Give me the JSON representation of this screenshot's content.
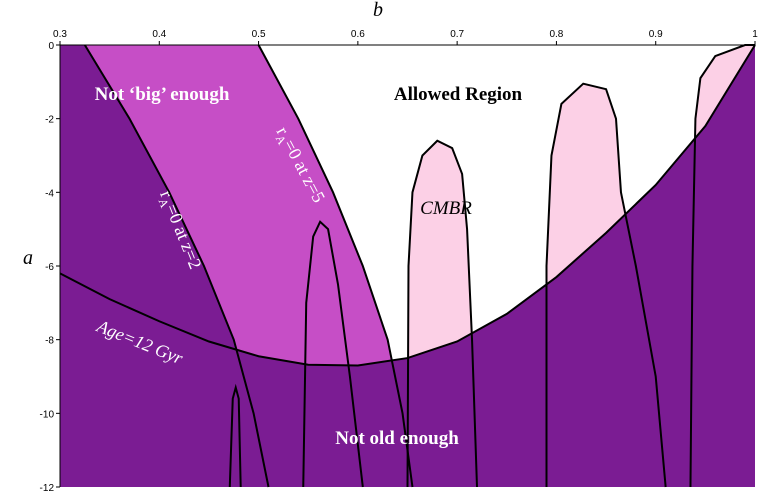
{
  "chart_data": {
    "type": "region",
    "x_label": "b",
    "y_label": "a",
    "xlim": [
      0.3,
      1.0
    ],
    "ylim": [
      -12,
      0
    ],
    "xticks": [
      0.3,
      0.4,
      0.5,
      0.6,
      0.7,
      0.8,
      0.9,
      1
    ],
    "yticks": [
      0,
      -2,
      -4,
      -6,
      -8,
      -10,
      -12
    ],
    "curves": [
      {
        "fill": "#c64ec6",
        "close": "left",
        "x": [
          0.5,
          0.54,
          0.575,
          0.605,
          0.63,
          0.645,
          0.655
        ],
        "values": [
          0,
          -2,
          -4,
          -6,
          -8,
          -10,
          -12
        ]
      },
      {
        "fill": "#7b1c93",
        "close": "left",
        "x": [
          0.325,
          0.37,
          0.41,
          0.445,
          0.475,
          0.495,
          0.51
        ],
        "values": [
          0,
          -2,
          -4,
          -6,
          -8,
          -10,
          -12
        ]
      },
      {
        "fill": "#fcd0e6",
        "close": "self",
        "x": [
          0.65,
          0.651,
          0.655,
          0.665,
          0.68,
          0.695,
          0.705,
          0.71,
          0.715,
          0.72
        ],
        "values": [
          -12,
          -6,
          -4,
          -3,
          -2.6,
          -2.8,
          -3.5,
          -5,
          -8,
          -12
        ]
      },
      {
        "fill": "#fcd0e6",
        "close": "self",
        "x": [
          0.79,
          0.79,
          0.795,
          0.805,
          0.827,
          0.85,
          0.86,
          0.865,
          0.88,
          0.9,
          0.91
        ],
        "values": [
          -12,
          -6,
          -3,
          -1.6,
          -1.05,
          -1.2,
          -2,
          -4,
          -6,
          -9,
          -12
        ]
      },
      {
        "fill": "#fcd0e6",
        "close": "self",
        "x": [
          0.935,
          0.937,
          0.94,
          0.945,
          0.96,
          0.99,
          1.0
        ],
        "values": [
          -12,
          -6,
          -2,
          -0.9,
          -0.3,
          0,
          0
        ]
      },
      {
        "fill": "#7b1c93",
        "close": "below",
        "x": [
          0.3,
          0.35,
          0.4,
          0.45,
          0.5,
          0.55,
          0.6,
          0.65,
          0.7,
          0.75,
          0.8,
          0.85,
          0.9,
          0.95,
          1.0
        ],
        "values": [
          -6.2,
          -6.9,
          -7.5,
          -8.05,
          -8.45,
          -8.68,
          -8.7,
          -8.5,
          -8.05,
          -7.3,
          -6.3,
          -5.1,
          -3.8,
          -2.2,
          0
        ]
      },
      {
        "close": "none",
        "x": [
          0.471,
          0.474,
          0.477,
          0.48,
          0.482
        ],
        "values": [
          -12,
          -9.6,
          -9.3,
          -9.6,
          -12
        ]
      },
      {
        "close": "none",
        "x": [
          0.545,
          0.548,
          0.555,
          0.562,
          0.57,
          0.58,
          0.592,
          0.605
        ],
        "values": [
          -12,
          -7,
          -5.2,
          -4.8,
          -5,
          -6.5,
          -9,
          -12
        ]
      }
    ],
    "labels": [
      {
        "text": "Not ‘big’ enough"
      },
      {
        "text": "Allowed Region"
      },
      {
        "text": "CMBR"
      },
      {
        "text": "Not old enough"
      },
      {
        "text": "Age=12 Gyr"
      },
      {
        "text": "r",
        "sub": "A",
        "rest": "=0 at z=2"
      },
      {
        "text": "r",
        "sub": "A",
        "rest": "=0 at z=5"
      }
    ]
  }
}
